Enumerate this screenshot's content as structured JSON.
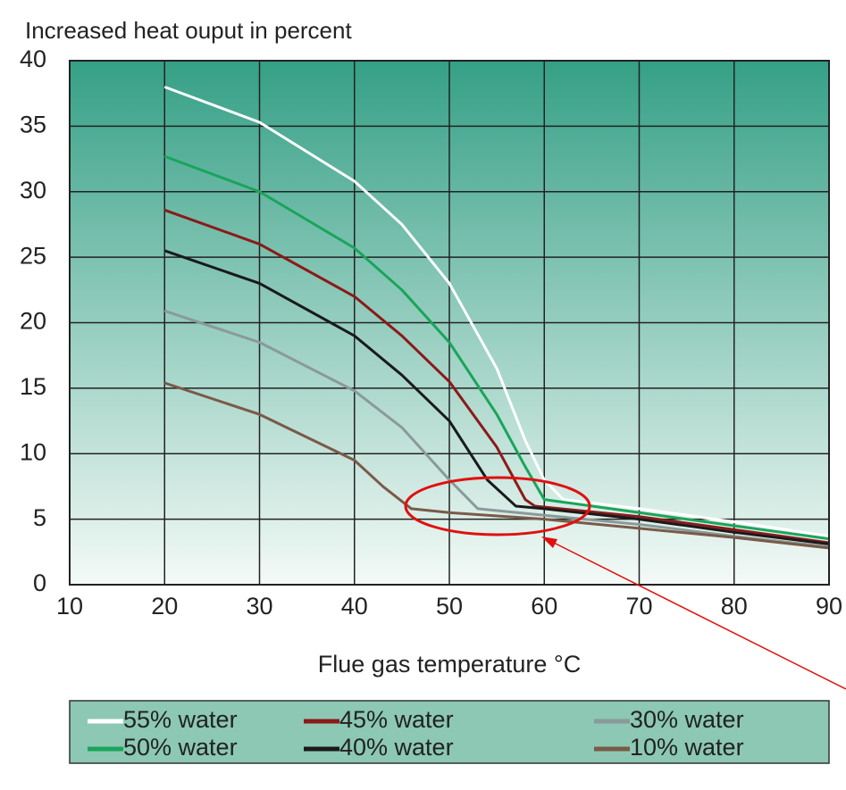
{
  "chart_data": {
    "type": "line",
    "title": "Increased heat ouput in percent",
    "x_label": "Flue gas temperature °C",
    "xlim": [
      10,
      90
    ],
    "xticks": [
      10,
      20,
      30,
      40,
      50,
      60,
      70,
      80,
      90
    ],
    "ylim": [
      0,
      40
    ],
    "yticks": [
      0,
      5,
      10,
      15,
      20,
      25,
      30,
      35,
      40
    ],
    "grid": true,
    "series": [
      {
        "name": "55% water",
        "color": "#ffffff",
        "x": [
          20,
          30,
          40,
          45,
          50,
          55,
          58,
          60,
          62,
          70,
          80,
          90
        ],
        "values": [
          38,
          35.3,
          30.8,
          27.5,
          23,
          16.5,
          11,
          8,
          6.5,
          5.8,
          4.8,
          3.7
        ]
      },
      {
        "name": "50% water",
        "color": "#1aa55a",
        "x": [
          20,
          30,
          40,
          45,
          50,
          55,
          58,
          60,
          70,
          80,
          90
        ],
        "values": [
          32.7,
          30,
          25.7,
          22.5,
          18.5,
          13,
          9,
          6.5,
          5.5,
          4.5,
          3.5
        ]
      },
      {
        "name": "45% water",
        "color": "#8b1a1a",
        "x": [
          20,
          30,
          40,
          45,
          50,
          55,
          58,
          59,
          70,
          80,
          90
        ],
        "values": [
          28.6,
          26,
          22,
          19,
          15.5,
          10.5,
          6.5,
          6,
          5.2,
          4.2,
          3.2
        ]
      },
      {
        "name": "40% water",
        "color": "#1a1a1a",
        "x": [
          20,
          30,
          40,
          45,
          50,
          54,
          57,
          60,
          70,
          80,
          90
        ],
        "values": [
          25.5,
          23,
          19,
          16,
          12.5,
          8,
          6,
          5.8,
          5,
          4,
          3.1
        ]
      },
      {
        "name": "30% water",
        "color": "#8a9a9a",
        "x": [
          20,
          30,
          40,
          45,
          50,
          53,
          60,
          70,
          80,
          90
        ],
        "values": [
          20.9,
          18.5,
          14.8,
          12,
          8,
          5.8,
          5.3,
          4.6,
          3.7,
          2.9
        ]
      },
      {
        "name": "10% water",
        "color": "#7a5a48",
        "x": [
          20,
          30,
          40,
          43,
          46,
          50,
          60,
          70,
          80,
          90
        ],
        "values": [
          15.4,
          13,
          9.5,
          7.5,
          5.8,
          5.5,
          5,
          4.3,
          3.6,
          2.8
        ]
      }
    ]
  }
}
